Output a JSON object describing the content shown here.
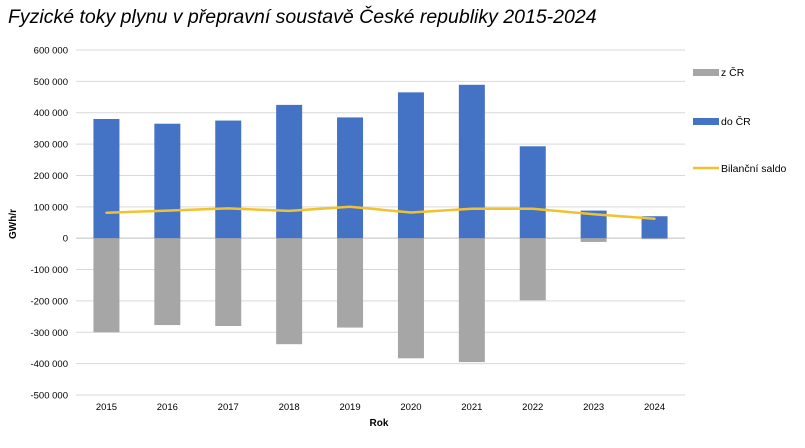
{
  "chart_data": {
    "type": "bar",
    "title": "Fyzické toky plynu v přepravní soustavě České republiky 2015-2024",
    "xlabel": "Rok",
    "ylabel": "GWh/r",
    "ylim": [
      -500000,
      600000
    ],
    "yticks": [
      600000,
      500000,
      400000,
      300000,
      200000,
      100000,
      0,
      -100000,
      -200000,
      -300000,
      -400000,
      -500000
    ],
    "ytick_labels": [
      "600 000",
      "500 000",
      "400 000",
      "300 000",
      "200 000",
      "100 000",
      "0",
      "-100 000",
      "-200 000",
      "-300 000",
      "-400 000",
      "-500 000"
    ],
    "categories": [
      "2015",
      "2016",
      "2017",
      "2018",
      "2019",
      "2020",
      "2021",
      "2022",
      "2023",
      "2024"
    ],
    "grid": true,
    "legend_position": "right",
    "series": [
      {
        "name": "z ČR",
        "kind": "bar",
        "color": "#a6a6a6",
        "values": [
          -300000,
          -277000,
          -280000,
          -338000,
          -285000,
          -383000,
          -395000,
          -198000,
          -12000,
          -3000
        ]
      },
      {
        "name": "do ČR",
        "kind": "bar",
        "color": "#4472c4",
        "values": [
          380000,
          365000,
          375000,
          425000,
          385000,
          465000,
          489000,
          293000,
          88000,
          70000
        ]
      },
      {
        "name": "Bilanční saldo",
        "kind": "line",
        "color": "#f2c12e",
        "values": [
          81000,
          88000,
          95000,
          87000,
          100000,
          82000,
          94000,
          94000,
          76000,
          62000
        ]
      }
    ]
  }
}
